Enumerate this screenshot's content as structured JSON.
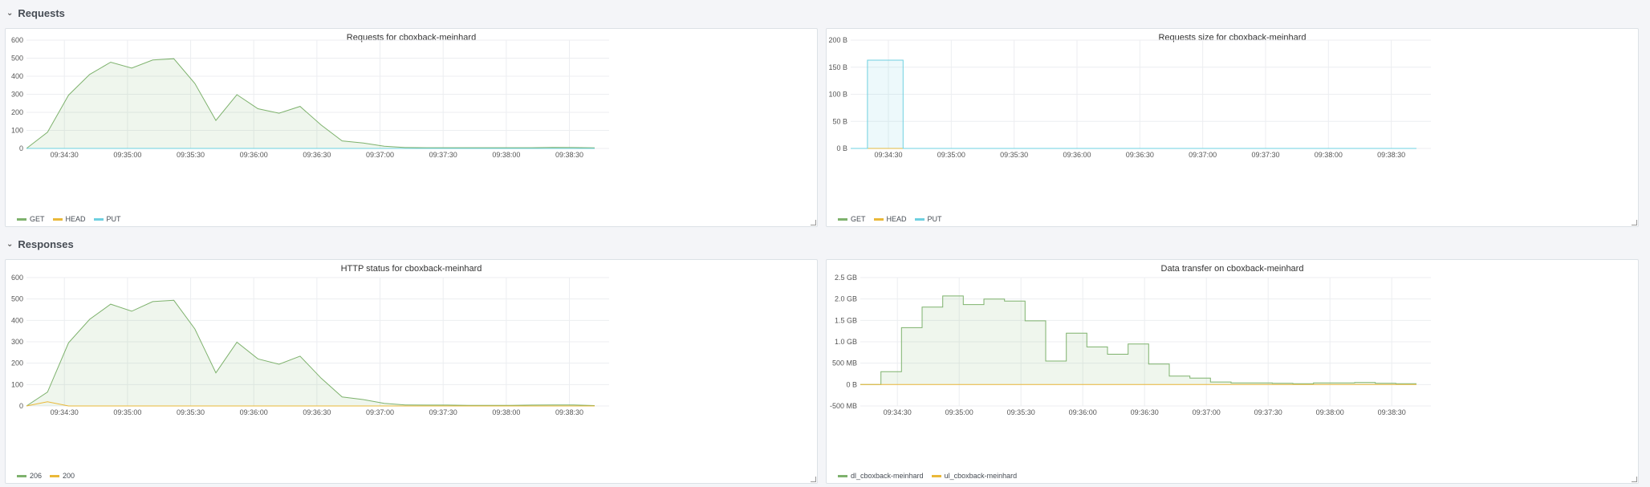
{
  "rows": [
    {
      "title": "Requests"
    },
    {
      "title": "Responses"
    }
  ],
  "x_ticks": [
    "09:34:30",
    "09:35:00",
    "09:35:30",
    "09:36:00",
    "09:36:30",
    "09:37:00",
    "09:37:30",
    "09:38:00",
    "09:38:30"
  ],
  "chart_data": [
    {
      "type": "area",
      "title": "Requests for cboxback-meinhard",
      "y_ticks": [
        "0",
        "100",
        "200",
        "300",
        "400",
        "500",
        "600"
      ],
      "ylim": [
        0,
        600
      ],
      "x_range": [
        "09:34:12",
        "09:38:42"
      ],
      "x": [
        0,
        10,
        20,
        30,
        40,
        50,
        60,
        70,
        80,
        90,
        100,
        110,
        120,
        130,
        140,
        150,
        160,
        170,
        180,
        190,
        200,
        210,
        220,
        230,
        240,
        250,
        260,
        270
      ],
      "series": [
        {
          "name": "GET",
          "color": "#7eb26d",
          "fill": true,
          "values": [
            0,
            90,
            295,
            410,
            478,
            445,
            490,
            497,
            360,
            155,
            298,
            220,
            195,
            233,
            130,
            42,
            30,
            12,
            5,
            4,
            4,
            4,
            4,
            4,
            4,
            6,
            5,
            3
          ]
        },
        {
          "name": "HEAD",
          "color": "#eab839",
          "fill": false,
          "values": [
            0,
            0,
            0,
            0,
            0,
            0,
            0,
            0,
            0,
            0,
            0,
            0,
            0,
            0,
            0,
            0,
            0,
            0,
            0,
            0,
            0,
            0,
            0,
            0,
            0,
            0,
            0,
            0
          ]
        },
        {
          "name": "PUT",
          "color": "#6ed0e0",
          "fill": false,
          "values": [
            0,
            0,
            0,
            0,
            0,
            0,
            0,
            0,
            0,
            0,
            0,
            0,
            0,
            0,
            0,
            0,
            0,
            0,
            0,
            0,
            0,
            0,
            0,
            0,
            0,
            0,
            0,
            0
          ]
        }
      ]
    },
    {
      "type": "area",
      "title": "Requests size for cboxback-meinhard",
      "y_ticks": [
        "0 B",
        "50 B",
        "100 B",
        "150 B",
        "200 B"
      ],
      "ylim": [
        0,
        200
      ],
      "x_range": [
        "09:34:12",
        "09:38:42"
      ],
      "x": [
        0,
        8,
        8,
        25,
        25,
        270
      ],
      "series": [
        {
          "name": "GET",
          "color": "#7eb26d",
          "fill": false,
          "values": [
            0,
            0,
            0,
            0,
            0,
            0
          ]
        },
        {
          "name": "HEAD",
          "color": "#eab839",
          "fill": false,
          "values": [
            0,
            0,
            0,
            0,
            0,
            0
          ]
        },
        {
          "name": "PUT",
          "color": "#6ed0e0",
          "fill": true,
          "values": [
            0,
            0,
            163,
            163,
            0,
            0
          ]
        }
      ]
    },
    {
      "type": "area",
      "title": "HTTP status for cboxback-meinhard",
      "y_ticks": [
        "0",
        "100",
        "200",
        "300",
        "400",
        "500",
        "600"
      ],
      "ylim": [
        0,
        600
      ],
      "x_range": [
        "09:34:12",
        "09:38:42"
      ],
      "x": [
        0,
        10,
        20,
        30,
        40,
        50,
        60,
        70,
        80,
        90,
        100,
        110,
        120,
        130,
        140,
        150,
        160,
        170,
        180,
        190,
        200,
        210,
        220,
        230,
        240,
        250,
        260,
        270
      ],
      "series": [
        {
          "name": "206",
          "color": "#7eb26d",
          "fill": true,
          "values": [
            0,
            65,
            295,
            405,
            476,
            443,
            488,
            494,
            360,
            155,
            298,
            220,
            195,
            233,
            130,
            42,
            30,
            12,
            5,
            4,
            4,
            3,
            3,
            3,
            4,
            5,
            5,
            2
          ]
        },
        {
          "name": "200",
          "color": "#eab839",
          "fill": false,
          "values": [
            0,
            20,
            0,
            0,
            0,
            0,
            0,
            0,
            0,
            0,
            0,
            0,
            0,
            0,
            0,
            0,
            0,
            0,
            0,
            0,
            0,
            0,
            0,
            0,
            0,
            0,
            0,
            0
          ]
        }
      ]
    },
    {
      "type": "area",
      "title": "Data transfer on cboxback-meinhard",
      "y_ticks": [
        "-500 MB",
        "0 B",
        "500 MB",
        "1.0 GB",
        "1.5 GB",
        "2.0 GB",
        "2.5 GB"
      ],
      "ylim": [
        -0.5,
        2.5
      ],
      "yunit": "GB",
      "x_range": [
        "09:34:12",
        "09:38:42"
      ],
      "step": true,
      "x": [
        0,
        10,
        20,
        30,
        40,
        50,
        60,
        70,
        80,
        90,
        100,
        110,
        120,
        130,
        140,
        150,
        160,
        170,
        180,
        190,
        200,
        210,
        220,
        230,
        240,
        250,
        260,
        270
      ],
      "series": [
        {
          "name": "dl_cboxback-meinhard",
          "color": "#7eb26d",
          "fill": true,
          "values": [
            0,
            0.3,
            1.33,
            1.81,
            2.07,
            1.87,
            2.0,
            1.95,
            1.49,
            0.55,
            1.2,
            0.88,
            0.71,
            0.95,
            0.48,
            0.2,
            0.15,
            0.06,
            0.04,
            0.04,
            0.03,
            0.02,
            0.04,
            0.04,
            0.05,
            0.03,
            0.02,
            0.02
          ]
        },
        {
          "name": "ul_cboxback-meinhard",
          "color": "#eab839",
          "fill": false,
          "values": [
            0,
            0,
            0,
            0,
            0,
            0,
            0,
            0,
            0,
            0,
            0,
            0,
            0,
            0,
            0,
            0,
            0,
            0,
            0,
            0,
            0,
            0,
            0,
            0,
            0,
            0,
            0,
            0
          ]
        }
      ]
    }
  ]
}
